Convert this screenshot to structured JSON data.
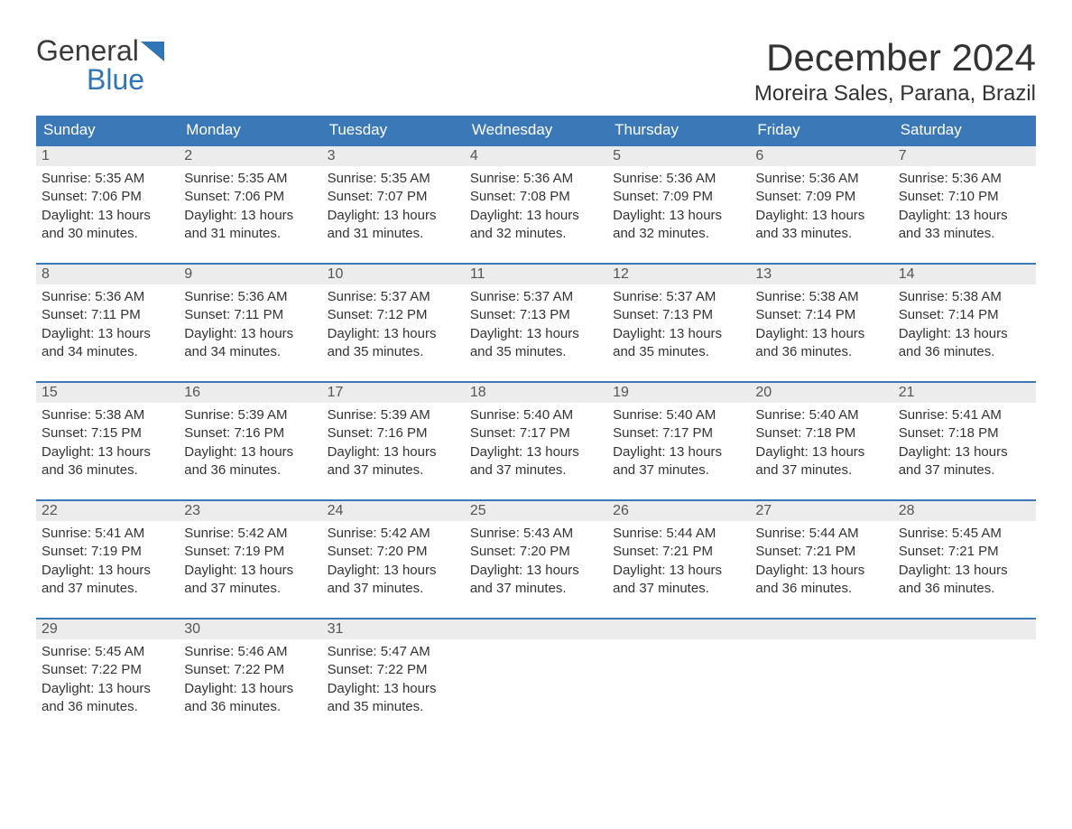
{
  "logo": {
    "text_general": "General",
    "text_blue": "Blue",
    "flag_color": "#2f76b7"
  },
  "header": {
    "month_year": "December 2024",
    "location": "Moreira Sales, Parana, Brazil"
  },
  "colors": {
    "header_bg": "#3b78b8",
    "header_text": "#ffffff",
    "daynum_bg": "#ececec",
    "daynum_text": "#555555",
    "body_text": "#333333",
    "week_border": "#3b78b8",
    "page_bg": "#ffffff",
    "logo_blue": "#2f76b7"
  },
  "typography": {
    "month_year_fontsize": 42,
    "location_fontsize": 24,
    "day_header_fontsize": 17,
    "daynum_fontsize": 16,
    "body_fontsize": 15
  },
  "day_names": [
    "Sunday",
    "Monday",
    "Tuesday",
    "Wednesday",
    "Thursday",
    "Friday",
    "Saturday"
  ],
  "labels": {
    "sunrise_prefix": "Sunrise: ",
    "sunset_prefix": "Sunset: ",
    "daylight_prefix": "Daylight: "
  },
  "weeks": [
    [
      {
        "num": "1",
        "sunrise": "5:35 AM",
        "sunset": "7:06 PM",
        "daylight": "13 hours and 30 minutes."
      },
      {
        "num": "2",
        "sunrise": "5:35 AM",
        "sunset": "7:06 PM",
        "daylight": "13 hours and 31 minutes."
      },
      {
        "num": "3",
        "sunrise": "5:35 AM",
        "sunset": "7:07 PM",
        "daylight": "13 hours and 31 minutes."
      },
      {
        "num": "4",
        "sunrise": "5:36 AM",
        "sunset": "7:08 PM",
        "daylight": "13 hours and 32 minutes."
      },
      {
        "num": "5",
        "sunrise": "5:36 AM",
        "sunset": "7:09 PM",
        "daylight": "13 hours and 32 minutes."
      },
      {
        "num": "6",
        "sunrise": "5:36 AM",
        "sunset": "7:09 PM",
        "daylight": "13 hours and 33 minutes."
      },
      {
        "num": "7",
        "sunrise": "5:36 AM",
        "sunset": "7:10 PM",
        "daylight": "13 hours and 33 minutes."
      }
    ],
    [
      {
        "num": "8",
        "sunrise": "5:36 AM",
        "sunset": "7:11 PM",
        "daylight": "13 hours and 34 minutes."
      },
      {
        "num": "9",
        "sunrise": "5:36 AM",
        "sunset": "7:11 PM",
        "daylight": "13 hours and 34 minutes."
      },
      {
        "num": "10",
        "sunrise": "5:37 AM",
        "sunset": "7:12 PM",
        "daylight": "13 hours and 35 minutes."
      },
      {
        "num": "11",
        "sunrise": "5:37 AM",
        "sunset": "7:13 PM",
        "daylight": "13 hours and 35 minutes."
      },
      {
        "num": "12",
        "sunrise": "5:37 AM",
        "sunset": "7:13 PM",
        "daylight": "13 hours and 35 minutes."
      },
      {
        "num": "13",
        "sunrise": "5:38 AM",
        "sunset": "7:14 PM",
        "daylight": "13 hours and 36 minutes."
      },
      {
        "num": "14",
        "sunrise": "5:38 AM",
        "sunset": "7:14 PM",
        "daylight": "13 hours and 36 minutes."
      }
    ],
    [
      {
        "num": "15",
        "sunrise": "5:38 AM",
        "sunset": "7:15 PM",
        "daylight": "13 hours and 36 minutes."
      },
      {
        "num": "16",
        "sunrise": "5:39 AM",
        "sunset": "7:16 PM",
        "daylight": "13 hours and 36 minutes."
      },
      {
        "num": "17",
        "sunrise": "5:39 AM",
        "sunset": "7:16 PM",
        "daylight": "13 hours and 37 minutes."
      },
      {
        "num": "18",
        "sunrise": "5:40 AM",
        "sunset": "7:17 PM",
        "daylight": "13 hours and 37 minutes."
      },
      {
        "num": "19",
        "sunrise": "5:40 AM",
        "sunset": "7:17 PM",
        "daylight": "13 hours and 37 minutes."
      },
      {
        "num": "20",
        "sunrise": "5:40 AM",
        "sunset": "7:18 PM",
        "daylight": "13 hours and 37 minutes."
      },
      {
        "num": "21",
        "sunrise": "5:41 AM",
        "sunset": "7:18 PM",
        "daylight": "13 hours and 37 minutes."
      }
    ],
    [
      {
        "num": "22",
        "sunrise": "5:41 AM",
        "sunset": "7:19 PM",
        "daylight": "13 hours and 37 minutes."
      },
      {
        "num": "23",
        "sunrise": "5:42 AM",
        "sunset": "7:19 PM",
        "daylight": "13 hours and 37 minutes."
      },
      {
        "num": "24",
        "sunrise": "5:42 AM",
        "sunset": "7:20 PM",
        "daylight": "13 hours and 37 minutes."
      },
      {
        "num": "25",
        "sunrise": "5:43 AM",
        "sunset": "7:20 PM",
        "daylight": "13 hours and 37 minutes."
      },
      {
        "num": "26",
        "sunrise": "5:44 AM",
        "sunset": "7:21 PM",
        "daylight": "13 hours and 37 minutes."
      },
      {
        "num": "27",
        "sunrise": "5:44 AM",
        "sunset": "7:21 PM",
        "daylight": "13 hours and 36 minutes."
      },
      {
        "num": "28",
        "sunrise": "5:45 AM",
        "sunset": "7:21 PM",
        "daylight": "13 hours and 36 minutes."
      }
    ],
    [
      {
        "num": "29",
        "sunrise": "5:45 AM",
        "sunset": "7:22 PM",
        "daylight": "13 hours and 36 minutes."
      },
      {
        "num": "30",
        "sunrise": "5:46 AM",
        "sunset": "7:22 PM",
        "daylight": "13 hours and 36 minutes."
      },
      {
        "num": "31",
        "sunrise": "5:47 AM",
        "sunset": "7:22 PM",
        "daylight": "13 hours and 35 minutes."
      },
      {
        "empty": true
      },
      {
        "empty": true
      },
      {
        "empty": true
      },
      {
        "empty": true
      }
    ]
  ]
}
